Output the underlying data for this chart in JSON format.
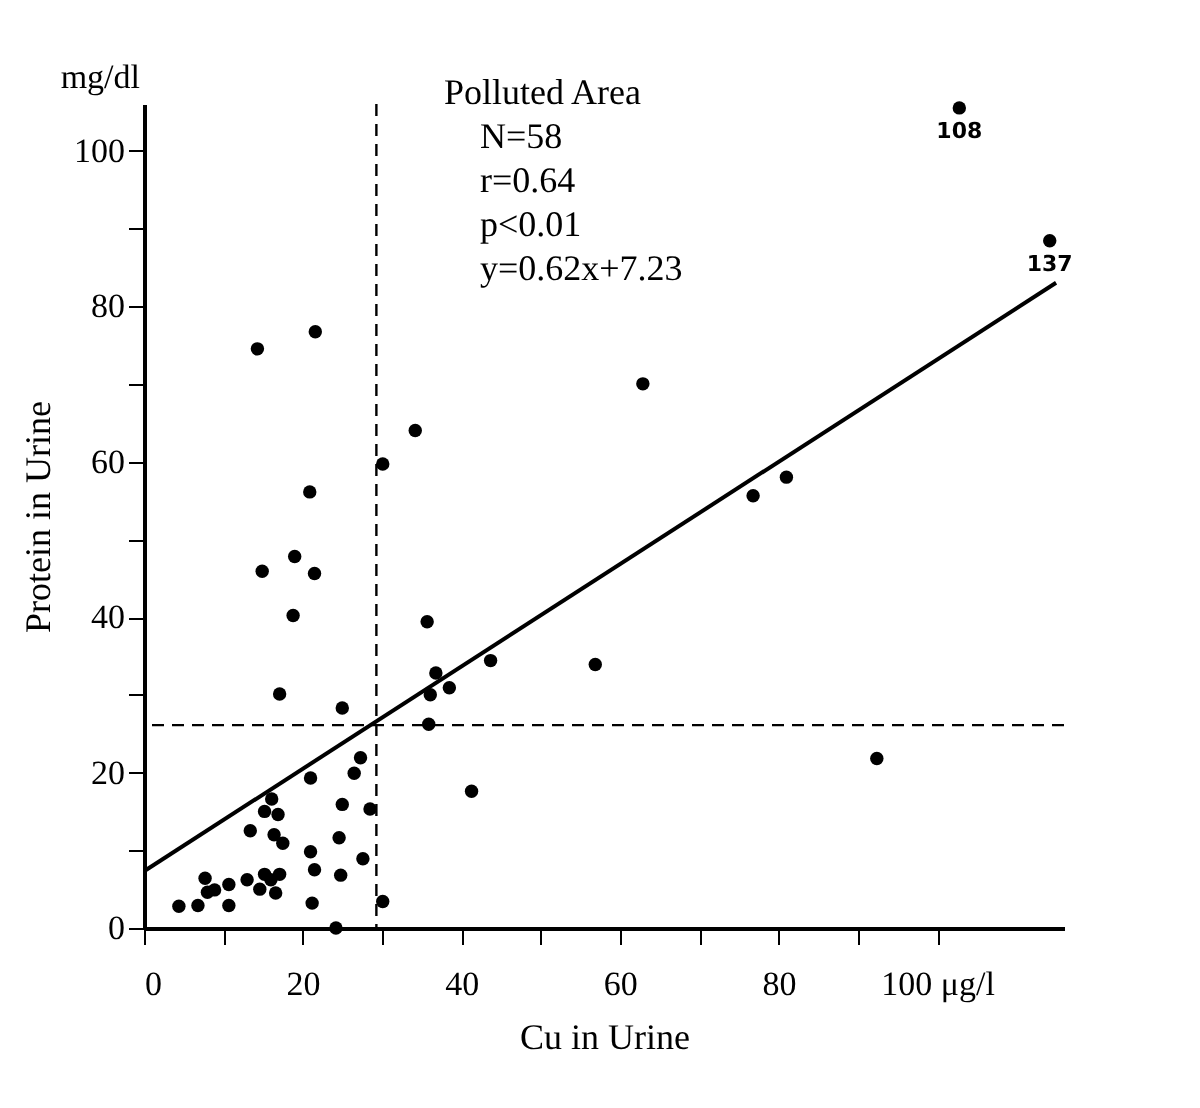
{
  "chart_data": {
    "type": "scatter",
    "xlabel": "Cu in Urine",
    "ylabel": "Protein in Urine",
    "xlim": [
      0,
      116
    ],
    "ylim": [
      0,
      106
    ],
    "xticks": [
      0,
      {
        "value": 10,
        "label": null
      },
      20,
      {
        "value": 30,
        "label": null
      },
      40,
      {
        "value": 50,
        "label": null
      },
      60,
      {
        "value": 70,
        "label": null
      },
      80,
      {
        "value": 90,
        "label": null
      },
      {
        "value": 100,
        "label": "100 μg/l"
      }
    ],
    "yticks": [
      0,
      {
        "value": 10,
        "label": null
      },
      20,
      {
        "value": 30,
        "label": null
      },
      40,
      {
        "value": 50,
        "label": null
      },
      60,
      {
        "value": 70,
        "label": null
      },
      80,
      {
        "value": 90,
        "label": null
      },
      100
    ],
    "grid": false,
    "marker": "circle",
    "series": [
      {
        "type": "scatter",
        "color": "#000000",
        "x": [
          14.3,
          21.6,
          20.9,
          14.9,
          19.0,
          21.5,
          30.1,
          34.2,
          62.9,
          76.3,
          76.8,
          81.0,
          102.8,
          114.2,
          18.8,
          35.7,
          17.1,
          25.0,
          43.7,
          56.9,
          36.8,
          36.1,
          38.5,
          35.9,
          21.0,
          27.3,
          26.5,
          41.3,
          25.0,
          28.5,
          16.1,
          15.2,
          16.9,
          13.4,
          16.4,
          17.5,
          21.0,
          24.6,
          27.6,
          21.5,
          24.8,
          30.1,
          21.2,
          24.2,
          4.4,
          6.8,
          7.7,
          8.9,
          10.7,
          10.7,
          8.0,
          13.0,
          15.2,
          14.6,
          17.1,
          16.6,
          16.0,
          92.4
        ],
        "values": [
          74.5,
          76.7,
          56.1,
          45.9,
          47.8,
          45.6,
          59.7,
          64.0,
          70.0,
          null,
          55.6,
          58.0,
          105.5,
          88.4,
          40.2,
          39.4,
          30.1,
          28.3,
          34.4,
          33.9,
          32.8,
          30.0,
          30.9,
          26.2,
          19.3,
          21.9,
          19.9,
          17.6,
          15.9,
          15.3,
          16.6,
          15.0,
          14.6,
          12.5,
          12.0,
          10.9,
          9.8,
          11.6,
          8.9,
          7.5,
          6.8,
          3.4,
          3.2,
          0.0,
          2.8,
          2.9,
          6.4,
          4.9,
          5.6,
          2.9,
          4.6,
          6.2,
          6.9,
          5.0,
          6.9,
          4.5,
          6.2,
          21.8
        ]
      },
      {
        "type": "line",
        "color": "#000000",
        "line_style": "solid",
        "marker": "none",
        "x": [
          0,
          115
        ],
        "values": [
          7.3,
          83.0
        ]
      }
    ],
    "ref_lines": [
      {
        "axis": "x",
        "value": 29.3,
        "label": null,
        "line_style": "dashed",
        "color": "#000000"
      },
      {
        "axis": "y",
        "value": 26.1,
        "label": null,
        "line_style": "dashed",
        "color": "#000000"
      }
    ],
    "annotations": [
      "mg/dl",
      "Polluted Area",
      "N=58",
      "r=0.64",
      "p<0.01",
      "y=0.62x+7.23",
      {
        "text": "108",
        "x": 102.8,
        "y": 105.5
      },
      {
        "text": "137",
        "x": 114.2,
        "y": 88.4
      }
    ]
  }
}
